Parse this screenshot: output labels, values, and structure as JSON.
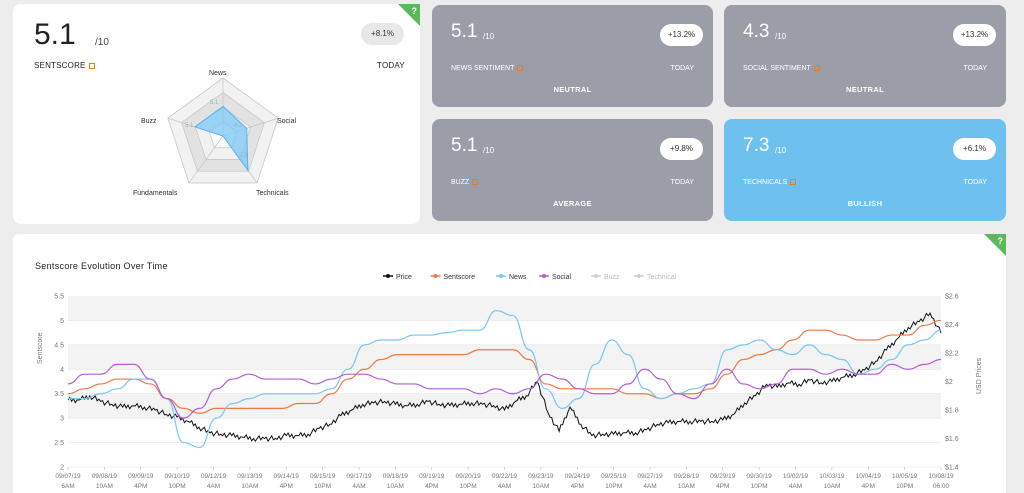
{
  "sentscore": {
    "score": "5.1",
    "denominator": "/10",
    "label": "SENTSCORE",
    "change": "+8.1%",
    "period": "TODAY",
    "help": "?",
    "radar_labels": {
      "news": "News",
      "social": "Social",
      "technicals": "Technicals",
      "fundamentals": "Fundamentals",
      "buzz": "Buzz"
    },
    "radar_values": {
      "news": "5.1",
      "social": "4.3",
      "technicals": "7.3",
      "buzz": "5.1"
    },
    "radar_data": {
      "news": 5.1,
      "social": 4.3,
      "technicals": 7.3,
      "fundamentals": 0,
      "buzz": 5.1
    }
  },
  "tiles": [
    {
      "score": "5.1",
      "den": "/10",
      "name": "NEWS SENTIMENT",
      "today": "TODAY",
      "change": "+13.2%",
      "verdict": "NEUTRAL",
      "color": "#9b9ea8"
    },
    {
      "score": "4.3",
      "den": "/10",
      "name": "SOCIAL SENTIMENT",
      "today": "TODAY",
      "change": "+13.2%",
      "verdict": "NEUTRAL",
      "color": "#9b9ea8"
    },
    {
      "score": "5.1",
      "den": "/10",
      "name": "BUZZ",
      "today": "TODAY",
      "change": "+9.8%",
      "verdict": "AVERAGE",
      "color": "#9b9ea8"
    },
    {
      "score": "7.3",
      "den": "/10",
      "name": "TECHNICALS",
      "today": "TODAY",
      "change": "+6.1%",
      "verdict": "BULLISH",
      "color": "#6ec0ee"
    }
  ],
  "chart_data": {
    "type": "line",
    "title": "Sentscore Evolution Over Time",
    "help": "?",
    "ylabel": "Sentscore",
    "y2label": "USD Prices",
    "ylim": [
      2,
      5.5
    ],
    "y2lim": [
      1.4,
      2.6
    ],
    "yticks": [
      "2",
      "2.5",
      "3",
      "3.5",
      "4",
      "4.5",
      "5",
      "5.5"
    ],
    "y2ticks": [
      "$1.4",
      "$1.6",
      "$1.8",
      "$2",
      "$2.2",
      "$2.4",
      "$2.6"
    ],
    "xticks": [
      [
        "09/07/19",
        "6AM"
      ],
      [
        "09/08/19",
        "10AM"
      ],
      [
        "09/09/19",
        "4PM"
      ],
      [
        "09/10/19",
        "10PM"
      ],
      [
        "09/12/19",
        "4AM"
      ],
      [
        "09/13/19",
        "10AM"
      ],
      [
        "09/14/19",
        "4PM"
      ],
      [
        "09/15/19",
        "10PM"
      ],
      [
        "09/17/19",
        "4AM"
      ],
      [
        "09/18/19",
        "10AM"
      ],
      [
        "09/19/19",
        "4PM"
      ],
      [
        "09/20/19",
        "10PM"
      ],
      [
        "09/22/19",
        "4AM"
      ],
      [
        "09/23/19",
        "10AM"
      ],
      [
        "09/24/19",
        "4PM"
      ],
      [
        "09/25/19",
        "10PM"
      ],
      [
        "09/27/19",
        "4AM"
      ],
      [
        "09/28/19",
        "10AM"
      ],
      [
        "09/29/19",
        "4PM"
      ],
      [
        "09/30/19",
        "10PM"
      ],
      [
        "10/02/19",
        "4AM"
      ],
      [
        "10/03/19",
        "10AM"
      ],
      [
        "10/04/19",
        "4PM"
      ],
      [
        "10/05/19",
        "10PM"
      ],
      [
        "10/08/19",
        "06:00"
      ]
    ],
    "series": [
      {
        "name": "Price",
        "color": "#111111",
        "axis": "right",
        "enabled": true,
        "values": [
          1.87,
          1.87,
          1.9,
          1.86,
          1.84,
          1.82,
          1.83,
          1.82,
          1.8,
          1.77,
          1.75,
          1.72,
          1.68,
          1.64,
          1.63,
          1.62,
          1.61,
          1.6,
          1.6,
          1.6,
          1.62,
          1.62,
          1.63,
          1.67,
          1.7,
          1.76,
          1.8,
          1.84,
          1.85,
          1.86,
          1.84,
          1.83,
          1.84,
          1.86,
          1.84,
          1.83,
          1.84,
          1.85,
          1.84,
          1.83,
          1.8,
          1.86,
          1.9,
          2.0,
          1.78,
          1.65,
          1.82,
          1.7,
          1.62,
          1.63,
          1.63,
          1.64,
          1.64,
          1.66,
          1.7,
          1.71,
          1.72,
          1.72,
          1.72,
          1.72,
          1.73,
          1.77,
          1.85,
          1.9,
          1.98,
          1.96,
          1.99,
          1.98,
          2.01,
          1.99,
          2.0,
          2.03,
          2.05,
          2.08,
          2.14,
          2.22,
          2.3,
          2.38,
          2.42,
          2.48,
          2.34
        ]
      },
      {
        "name": "Sentscore",
        "color": "#f07a45",
        "axis": "left",
        "enabled": true,
        "values": [
          3.5,
          3.6,
          3.7,
          3.8,
          3.8,
          3.7,
          3.4,
          3.2,
          3.1,
          3.2,
          3.2,
          3.2,
          3.2,
          3.2,
          3.3,
          3.3,
          3.5,
          3.8,
          4.0,
          4.2,
          4.3,
          4.3,
          4.3,
          4.3,
          4.3,
          4.4,
          4.4,
          4.4,
          4.2,
          3.7,
          3.6,
          3.6,
          3.6,
          3.6,
          3.5,
          3.5,
          3.4,
          3.5,
          3.5,
          3.6,
          3.9,
          4.2,
          4.3,
          4.4,
          4.6,
          4.8,
          4.8,
          4.7,
          4.6,
          4.6,
          4.7,
          4.7,
          4.9,
          5.0
        ]
      },
      {
        "name": "News",
        "color": "#78c8ef",
        "axis": "left",
        "enabled": true,
        "values": [
          3.4,
          3.4,
          3.5,
          3.6,
          3.8,
          3.8,
          3.4,
          2.5,
          2.4,
          3.0,
          3.3,
          3.4,
          3.5,
          3.5,
          3.5,
          3.5,
          3.6,
          4.0,
          4.5,
          4.6,
          4.6,
          4.7,
          4.7,
          4.75,
          4.8,
          4.8,
          5.2,
          5.1,
          4.4,
          3.6,
          3.2,
          3.4,
          4.1,
          4.6,
          4.3,
          3.6,
          3.4,
          3.5,
          3.6,
          3.7,
          4.4,
          4.5,
          4.6,
          4.4,
          4.3,
          4.5,
          4.3,
          4.2,
          3.9,
          4.0,
          4.2,
          4.5,
          4.6,
          4.8
        ]
      },
      {
        "name": "Social",
        "color": "#b25fd8",
        "axis": "left",
        "enabled": true,
        "values": [
          3.7,
          3.9,
          3.9,
          4.1,
          4.1,
          3.8,
          3.4,
          3.0,
          3.2,
          3.6,
          3.8,
          3.9,
          3.8,
          3.8,
          3.8,
          3.7,
          3.8,
          3.9,
          3.9,
          3.8,
          3.7,
          3.7,
          3.6,
          3.6,
          3.6,
          3.5,
          3.6,
          3.5,
          3.6,
          3.9,
          3.8,
          3.6,
          3.5,
          3.5,
          3.7,
          4.0,
          3.8,
          3.5,
          3.4,
          3.7,
          4.0,
          3.7,
          3.6,
          3.7,
          4.0,
          4.0,
          3.9,
          4.0,
          3.9,
          3.9,
          4.1,
          4.0,
          4.1,
          4.2
        ]
      },
      {
        "name": "Buzz",
        "color": "#d5d5d5",
        "axis": "left",
        "enabled": false,
        "values": []
      },
      {
        "name": "Technical",
        "color": "#d5d5d5",
        "axis": "left",
        "enabled": false,
        "values": []
      }
    ]
  }
}
